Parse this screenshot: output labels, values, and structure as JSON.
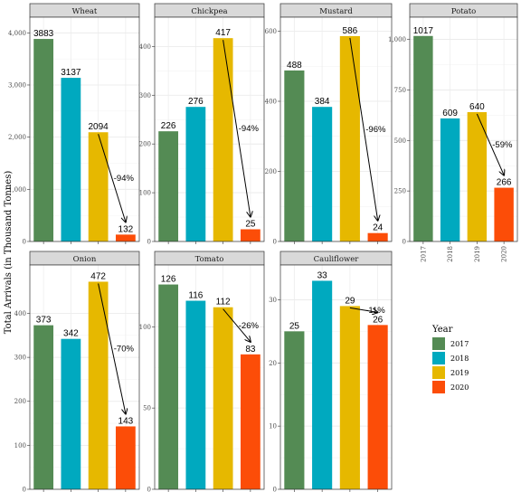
{
  "chart_data": {
    "type": "bar",
    "ylabel": "Total Arrivals (in Thousand Tonnes)",
    "legend": {
      "title": "Year",
      "placement": "right",
      "entries": [
        "2017",
        "2018",
        "2019",
        "2020"
      ]
    },
    "colors": [
      "#548b54",
      "#00a9bf",
      "#e6b800",
      "#fc4d08"
    ],
    "grid": true,
    "panels": [
      {
        "name": "Wheat",
        "categories": [
          "2017",
          "2018",
          "2019",
          "2020"
        ],
        "values": [
          3883,
          3137,
          2094,
          132
        ],
        "labels": [
          "3883",
          "3137",
          "2094",
          "132"
        ],
        "ylim": [
          0,
          4300
        ],
        "ticks": [
          0,
          1000,
          2000,
          3000,
          4000
        ],
        "tick_labels": [
          "0",
          "1,000",
          "2,000",
          "3,000",
          "4,000"
        ],
        "change": "-94%"
      },
      {
        "name": "Chickpea",
        "categories": [
          "2017",
          "2018",
          "2019",
          "2020"
        ],
        "values": [
          226,
          276,
          417,
          25
        ],
        "labels": [
          "226",
          "276",
          "417",
          "25"
        ],
        "ylim": [
          0,
          460
        ],
        "ticks": [
          0,
          100,
          200,
          300,
          400
        ],
        "tick_labels": [
          "0",
          "100",
          "200",
          "300",
          "400"
        ],
        "change": "-94%"
      },
      {
        "name": "Mustard",
        "categories": [
          "2017",
          "2018",
          "2019",
          "2020"
        ],
        "values": [
          488,
          384,
          586,
          24
        ],
        "labels": [
          "488",
          "384",
          "586",
          "24"
        ],
        "ylim": [
          0,
          640
        ],
        "ticks": [
          0,
          200,
          400,
          600
        ],
        "tick_labels": [
          "0",
          "200",
          "400",
          "600"
        ],
        "change": "-96%"
      },
      {
        "name": "Potato",
        "categories": [
          "2017",
          "2018",
          "2019",
          "2020"
        ],
        "values": [
          1017,
          609,
          640,
          266
        ],
        "labels": [
          "1017",
          "609",
          "640",
          "266"
        ],
        "ylim": [
          0,
          1110
        ],
        "ticks": [
          0,
          250,
          500,
          750,
          1000
        ],
        "tick_labels": [
          "0",
          "250",
          "500",
          "750",
          "1,000"
        ],
        "change": "-59%",
        "show_x_ticks": true
      },
      {
        "name": "Onion",
        "categories": [
          "2017",
          "2018",
          "2019",
          "2020"
        ],
        "values": [
          373,
          342,
          472,
          143
        ],
        "labels": [
          "373",
          "342",
          "472",
          "143"
        ],
        "ylim": [
          0,
          510
        ],
        "ticks": [
          0,
          100,
          200,
          300,
          400
        ],
        "tick_labels": [
          "0",
          "100",
          "200",
          "300",
          "400"
        ],
        "change": "-70%"
      },
      {
        "name": "Tomato",
        "categories": [
          "2017",
          "2018",
          "2019",
          "2020"
        ],
        "values": [
          126,
          116,
          112,
          83
        ],
        "labels": [
          "126",
          "116",
          "112",
          "83"
        ],
        "ylim": [
          0,
          138
        ],
        "ticks": [
          0,
          50,
          100
        ],
        "tick_labels": [
          "0",
          "50",
          "100"
        ],
        "change": "-26%"
      },
      {
        "name": "Cauliflower",
        "categories": [
          "2017",
          "2018",
          "2019",
          "2020"
        ],
        "values": [
          25,
          33,
          29,
          26
        ],
        "labels": [
          "25",
          "33",
          "29",
          "26"
        ],
        "ylim": [
          0,
          35.5
        ],
        "ticks": [
          0,
          10,
          20,
          30
        ],
        "tick_labels": [
          "0",
          "10",
          "20",
          "30"
        ],
        "change": "-11%"
      }
    ]
  }
}
